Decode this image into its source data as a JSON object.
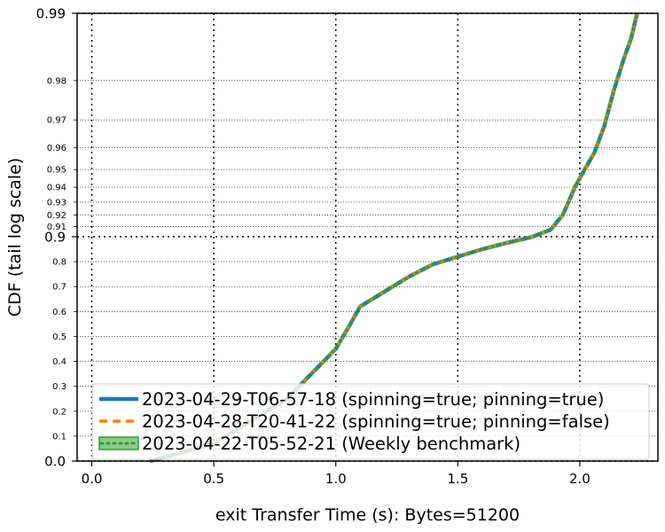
{
  "chart_data": {
    "type": "line",
    "xlabel": "exit Transfer Time (s): Bytes=51200",
    "ylabel": "CDF (tail log scale)",
    "xlim": [
      -0.06,
      2.32
    ],
    "x_ticks": [
      "0.0",
      "0.5",
      "1.0",
      "1.5",
      "2.0"
    ],
    "x_tick_values": [
      0.0,
      0.5,
      1.0,
      1.5,
      2.0
    ],
    "y_scale": "tail-log (linear 0-0.9, log-tail above 0.9)",
    "y_major_ticks": [
      "0.0",
      "0.9",
      "0.99"
    ],
    "y_major_values": [
      0.0,
      0.9,
      0.99
    ],
    "y_minor_ticks": [
      "0.1",
      "0.2",
      "0.3",
      "0.4",
      "0.5",
      "0.6",
      "0.7",
      "0.8",
      "0.91",
      "0.92",
      "0.93",
      "0.94",
      "0.95",
      "0.96",
      "0.97",
      "0.98"
    ],
    "y_minor_values": [
      0.1,
      0.2,
      0.3,
      0.4,
      0.5,
      0.6,
      0.7,
      0.8,
      0.91,
      0.92,
      0.93,
      0.94,
      0.95,
      0.96,
      0.97,
      0.98
    ],
    "grid": true,
    "legend_position": "lower-right",
    "series": [
      {
        "name": "2023-04-29-T06-57-18 (spinning=true; pinning=true)",
        "color": "#1f77b4",
        "style": "solid",
        "x": [
          0.24,
          0.5,
          0.8,
          1.0,
          1.06,
          1.1,
          1.15,
          1.2,
          1.3,
          1.4,
          1.5,
          1.6,
          1.7,
          1.8,
          1.88,
          1.93,
          1.98,
          2.02,
          2.06,
          2.1,
          2.14,
          2.18,
          2.21,
          2.235
        ],
        "y": [
          0.0,
          0.07,
          0.25,
          0.45,
          0.55,
          0.62,
          0.65,
          0.68,
          0.74,
          0.79,
          0.82,
          0.85,
          0.875,
          0.898,
          0.907,
          0.92,
          0.94,
          0.95,
          0.958,
          0.968,
          0.978,
          0.984,
          0.987,
          0.99
        ]
      },
      {
        "name": "2023-04-28-T20-41-22 (spinning=true; pinning=false)",
        "color": "#ff7f0e",
        "style": "dashed",
        "x": [
          0.24,
          0.5,
          0.8,
          1.0,
          1.06,
          1.1,
          1.15,
          1.2,
          1.3,
          1.4,
          1.5,
          1.6,
          1.7,
          1.8,
          1.88,
          1.93,
          1.98,
          2.02,
          2.06,
          2.1,
          2.14,
          2.18,
          2.21,
          2.235
        ],
        "y": [
          0.0,
          0.07,
          0.25,
          0.45,
          0.55,
          0.62,
          0.65,
          0.68,
          0.74,
          0.79,
          0.82,
          0.85,
          0.875,
          0.898,
          0.907,
          0.92,
          0.94,
          0.95,
          0.958,
          0.968,
          0.978,
          0.984,
          0.987,
          0.99
        ]
      },
      {
        "name": "2023-04-22-T05-52-21 (Weekly benchmark)",
        "color": "#2ca02c",
        "style": "dotted",
        "x": [
          0.24,
          0.5,
          0.8,
          1.0,
          1.06,
          1.1,
          1.15,
          1.2,
          1.3,
          1.4,
          1.5,
          1.6,
          1.7,
          1.8,
          1.88,
          1.93,
          1.98,
          2.02,
          2.06,
          2.1,
          2.14,
          2.18,
          2.21,
          2.235
        ],
        "y": [
          0.0,
          0.07,
          0.25,
          0.45,
          0.55,
          0.62,
          0.65,
          0.68,
          0.74,
          0.79,
          0.82,
          0.85,
          0.875,
          0.898,
          0.907,
          0.92,
          0.94,
          0.95,
          0.958,
          0.968,
          0.978,
          0.984,
          0.987,
          0.99
        ]
      }
    ]
  }
}
